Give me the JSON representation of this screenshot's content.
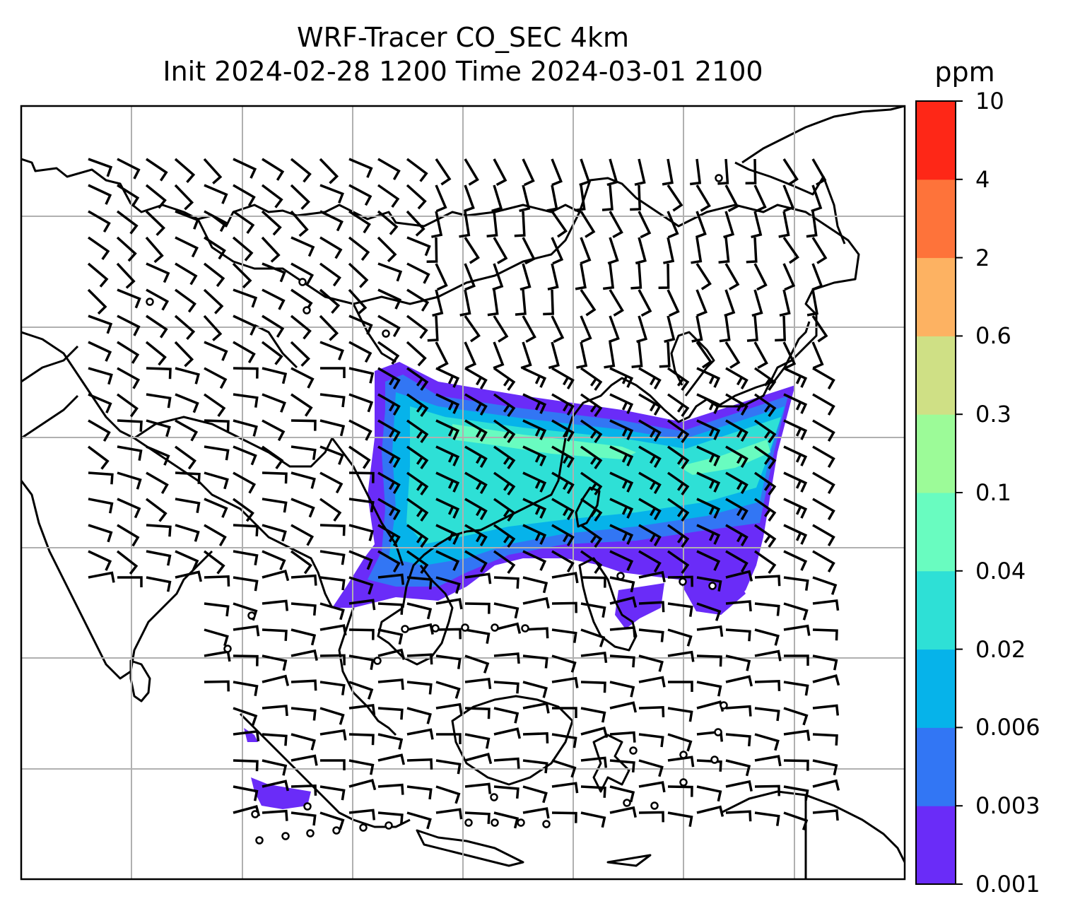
{
  "title": {
    "line1": "WRF-Tracer CO_SEC 4km",
    "line2": "Init 2024-02-28 1200 Time 2024-03-01 2100"
  },
  "colorbar": {
    "units": "ppm",
    "levels": [
      "0.001",
      "0.003",
      "0.006",
      "0.02",
      "0.04",
      "0.1",
      "0.3",
      "0.6",
      "2",
      "4",
      "10"
    ],
    "colors": [
      "#6a2cf8",
      "#3276f4",
      "#06b3ea",
      "#2ee0d6",
      "#69fcc0",
      "#9cfb98",
      "#cfe085",
      "#fdb262",
      "#fe733a",
      "#fe2717"
    ]
  },
  "map": {
    "land_outline_color": "#000000",
    "gridline_color": "#b0b0b0",
    "plume_colors": {
      "outer": "#6a2cf8",
      "mid": "#3276f4",
      "inner": "#06b3ea",
      "core": "#2ee0d6",
      "peak": "#69fcc0"
    },
    "wind_barb_color": "#000000"
  }
}
